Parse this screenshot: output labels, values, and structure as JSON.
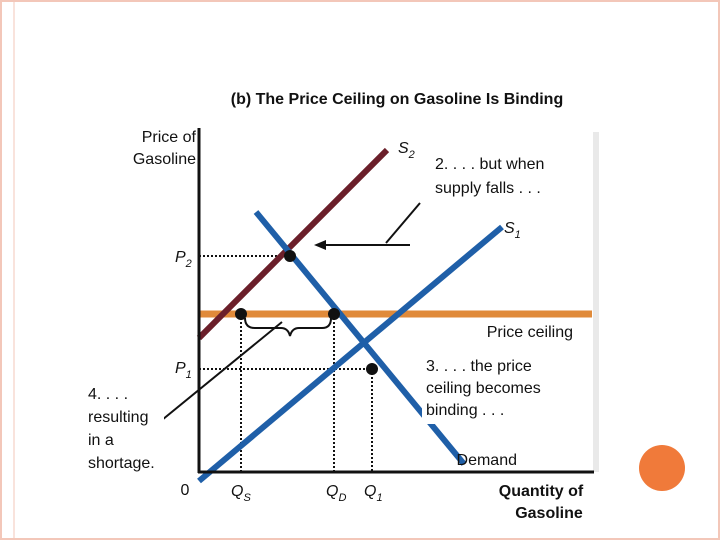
{
  "theme": {
    "border_color": "#f3c7b9",
    "axis_color": "#111111",
    "panel_color": "#e9e9e9",
    "supply2_color": "#6b1f2a",
    "supply1_color": "#1f5fa8",
    "demand_color": "#1f5fa8",
    "ceiling_color": "#e08a3a",
    "circle_color": "#f07a3a"
  },
  "chart_data": {
    "type": "line",
    "title": "(b) The Price Ceiling on Gasoline Is Binding",
    "ylabel": [
      "Price of",
      "Gasoline"
    ],
    "xlabel": [
      "Quantity of",
      "Gasoline"
    ],
    "origin_label": "0",
    "y_ticks": {
      "p2": {
        "base": "P",
        "sub": "2"
      },
      "p1": {
        "base": "P",
        "sub": "1"
      }
    },
    "x_ticks": {
      "qs": {
        "base": "Q",
        "sub": "S"
      },
      "qd": {
        "base": "Q",
        "sub": "D"
      },
      "q1": {
        "base": "Q",
        "sub": "1"
      }
    },
    "series": {
      "s2": {
        "name_base": "S",
        "name_sub": "2"
      },
      "s1": {
        "name_base": "S",
        "name_sub": "1"
      },
      "demand": {
        "name": "Demand"
      },
      "ceiling": {
        "name": "Price ceiling"
      }
    },
    "annotations": {
      "supply_falls": [
        "2. . . . but when",
        "supply falls . . ."
      ],
      "binding": [
        "3. . . . the price",
        "ceiling becomes",
        "binding . . ."
      ],
      "shortage": [
        "4. . . .",
        "resulting",
        "in a",
        "shortage."
      ]
    }
  }
}
